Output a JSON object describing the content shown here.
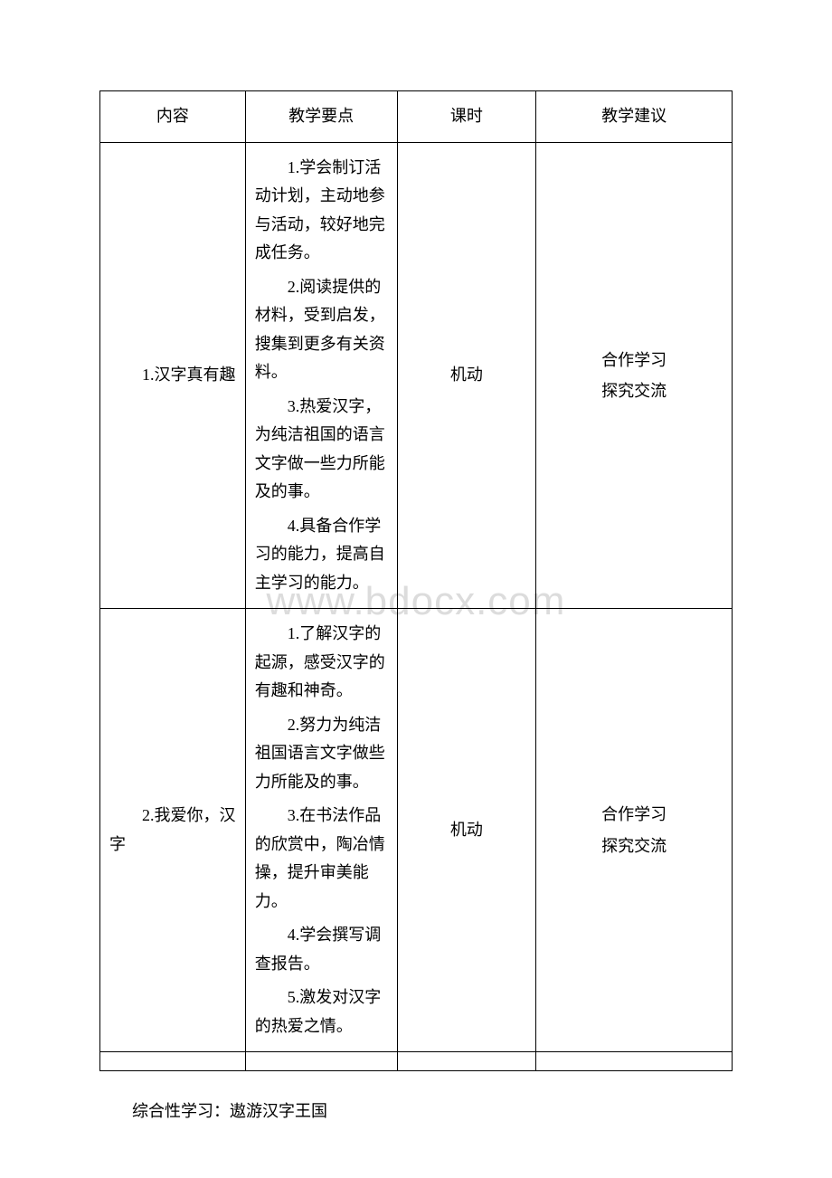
{
  "watermark": "www.bdocx.com",
  "table": {
    "headers": {
      "col1": "内容",
      "col2": "教学要点",
      "col3": "课时",
      "col4": "教学建议"
    },
    "rows": [
      {
        "name": "1.汉字真有趣",
        "points": [
          "1.学会制订活动计划，主动地参与活动，较好地完成任务。",
          "2.阅读提供的材料，受到启发，搜集到更多有关资料。",
          "3.热爱汉字，为纯洁祖国的语言文字做一些力所能及的事。",
          "4.具备合作学习的能力，提高自主学习的能力。"
        ],
        "hours": "机动",
        "suggestions": [
          "合作学习",
          "探究交流"
        ]
      },
      {
        "name": "2.我爱你，汉字",
        "points": [
          "1.了解汉字的起源，感受汉字的有趣和神奇。",
          "2.努力为纯洁祖国语言文字做些力所能及的事。",
          "3.在书法作品的欣赏中，陶冶情操，提升审美能力。",
          "4.学会撰写调查报告。",
          "5.激发对汉字的热爱之情。"
        ],
        "hours": "机动",
        "suggestions": [
          "合作学习",
          "探究交流"
        ]
      }
    ]
  },
  "footer": "综合性学习：遨游汉字王国"
}
